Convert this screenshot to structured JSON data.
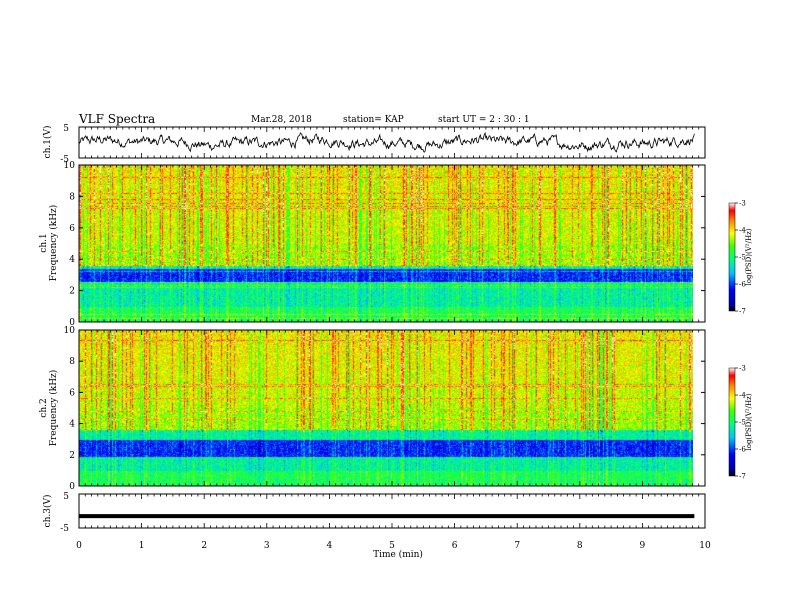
{
  "header": {
    "title": "VLF Spectra",
    "date": "Mar.28, 2018",
    "station": "station= KAP",
    "start": "start UT =  2 : 30 : 1"
  },
  "chart_data": [
    {
      "type": "line",
      "name": "ch1-voltage",
      "ylabel": "ch.1(V)",
      "ylim": [
        -5,
        5
      ],
      "yticks": [
        "5",
        "-5"
      ],
      "xlim": [
        0,
        10
      ],
      "xdata_end": 9.83
    },
    {
      "type": "heatmap",
      "name": "ch1-spectrogram",
      "ylabel_channel": "ch.1",
      "ylabel": "Frequency (kHz)",
      "ylim": [
        0,
        10
      ],
      "yticks": [
        "0",
        "2",
        "4",
        "6",
        "8",
        "10"
      ],
      "xlim": [
        0,
        10
      ],
      "xdata_end": 9.83,
      "colorbar": {
        "label": "log(PSD)(V²/Hz)",
        "range": [
          -7,
          -3
        ],
        "ticks": [
          "-3",
          "-4",
          "-5",
          "-6",
          "-7"
        ]
      }
    },
    {
      "type": "heatmap",
      "name": "ch2-spectrogram",
      "ylabel_channel": "ch.2",
      "ylabel": "Frequency (kHz)",
      "ylim": [
        0,
        10
      ],
      "yticks": [
        "0",
        "2",
        "4",
        "6",
        "8",
        "10"
      ],
      "xlim": [
        0,
        10
      ],
      "xdata_end": 9.83,
      "colorbar": {
        "label": "log(PSD)(V²/Hz)",
        "range": [
          -7,
          -3
        ],
        "ticks": [
          "-3",
          "-4",
          "-5",
          "-6",
          "-7"
        ]
      }
    },
    {
      "type": "line",
      "name": "ch3-voltage",
      "ylabel": "ch.3(V)",
      "ylim": [
        -5,
        5
      ],
      "yticks": [
        "5",
        "-5"
      ],
      "xlim": [
        0,
        10
      ],
      "xdata_end": 9.83,
      "level": -1.5
    }
  ],
  "xaxis": {
    "label": "Time (min)",
    "ticks": [
      "0",
      "1",
      "2",
      "3",
      "4",
      "5",
      "6",
      "7",
      "8",
      "9",
      "10"
    ]
  }
}
